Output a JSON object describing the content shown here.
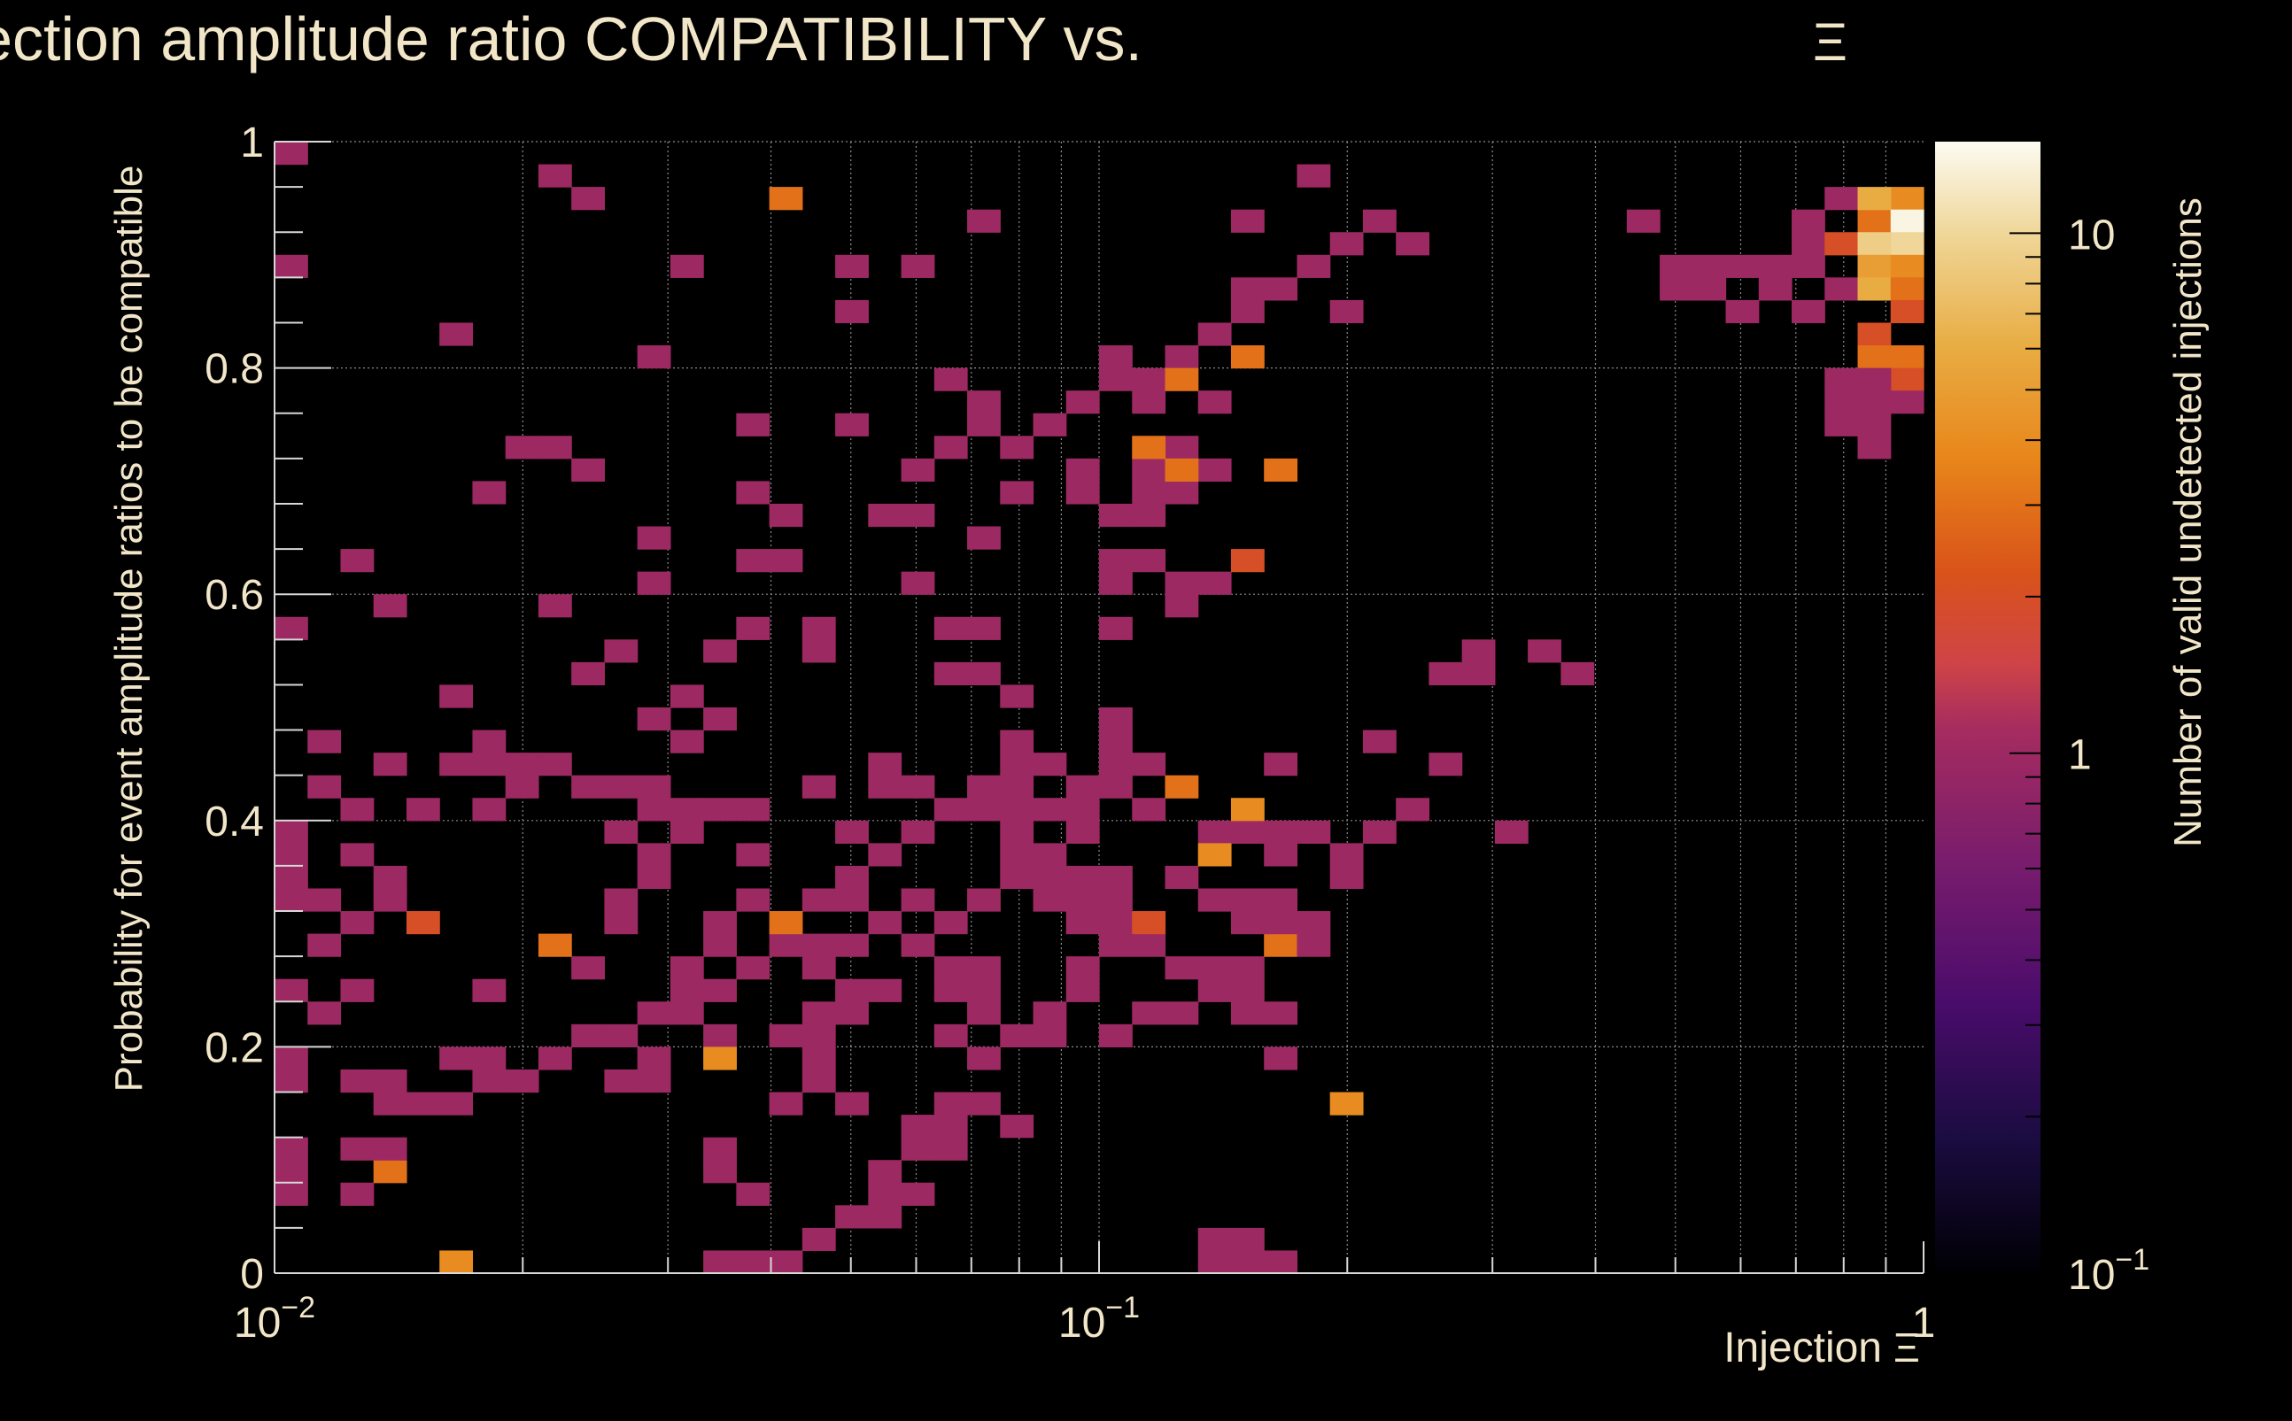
{
  "chart_data": {
    "type": "heatmap",
    "title": "Injection amplitude ratio COMPATIBILITY vs.",
    "title_symbol": "Ξ",
    "xlabel": "Injection",
    "xlabel_symbol": "Ξ",
    "ylabel": "Probability for event amplitude ratios to be compatible",
    "zlabel": "Number of valid undetected injections",
    "x_scale": "log",
    "xlim": [
      0.01,
      1
    ],
    "ylim": [
      0,
      1
    ],
    "z_scale": "log",
    "zlim": [
      0.1,
      15
    ],
    "x_ticks": [
      {
        "base": "10",
        "exp": "−2"
      },
      {
        "base": "10",
        "exp": "−1"
      },
      {
        "base": "1",
        "exp": ""
      }
    ],
    "y_ticks": [
      "0",
      "0.2",
      "0.4",
      "0.6",
      "0.8",
      "1"
    ],
    "z_ticks": [
      {
        "base": "10",
        "exp": "−1"
      },
      {
        "base": "1",
        "exp": ""
      },
      {
        "base": "10",
        "exp": ""
      }
    ],
    "grid": true,
    "n_xbins": 50,
    "n_ybins": 50,
    "bins": [
      [
        0,
        49,
        1
      ],
      [
        8,
        48,
        1
      ],
      [
        34,
        45,
        1
      ],
      [
        9,
        47,
        1
      ],
      [
        31,
        48,
        1
      ],
      [
        29,
        46,
        1
      ],
      [
        21,
        46,
        1
      ],
      [
        41,
        46,
        1
      ],
      [
        42,
        44,
        1
      ],
      [
        42,
        43,
        1
      ],
      [
        43,
        44,
        1
      ],
      [
        44,
        44,
        1
      ],
      [
        45,
        44,
        1
      ],
      [
        46,
        44,
        1
      ],
      [
        47,
        47,
        1
      ],
      [
        46,
        46,
        1
      ],
      [
        46,
        45,
        1
      ],
      [
        47,
        45,
        2
      ],
      [
        48,
        46,
        3
      ],
      [
        49,
        47,
        4
      ],
      [
        48,
        47,
        6
      ],
      [
        49,
        46,
        14
      ],
      [
        49,
        45,
        10
      ],
      [
        48,
        45,
        9
      ],
      [
        47,
        43,
        1
      ],
      [
        48,
        44,
        5
      ],
      [
        49,
        44,
        4
      ],
      [
        48,
        43,
        6
      ],
      [
        49,
        43,
        3
      ],
      [
        49,
        42,
        2
      ],
      [
        48,
        41,
        2
      ],
      [
        48,
        40,
        3
      ],
      [
        49,
        40,
        3
      ],
      [
        49,
        39,
        2
      ],
      [
        48,
        39,
        1
      ],
      [
        47,
        39,
        1
      ],
      [
        48,
        38,
        1
      ],
      [
        47,
        38,
        1
      ],
      [
        47,
        37,
        1
      ],
      [
        48,
        37,
        1
      ],
      [
        48,
        36,
        1
      ],
      [
        49,
        38,
        1
      ],
      [
        46,
        42,
        1
      ],
      [
        45,
        43,
        1
      ],
      [
        44,
        42,
        1
      ],
      [
        43,
        43,
        1
      ],
      [
        20,
        39,
        1
      ],
      [
        21,
        38,
        1
      ],
      [
        11,
        40,
        1
      ],
      [
        17,
        44,
        1
      ],
      [
        19,
        44,
        1
      ],
      [
        0,
        44,
        1
      ],
      [
        12,
        44,
        1
      ],
      [
        25,
        40,
        1
      ],
      [
        5,
        41,
        1
      ],
      [
        26,
        38,
        1
      ],
      [
        17,
        42,
        1
      ],
      [
        32,
        42,
        1
      ],
      [
        29,
        43,
        1
      ],
      [
        28,
        38,
        1
      ],
      [
        21,
        37,
        1
      ],
      [
        19,
        35,
        1
      ],
      [
        18,
        33,
        1
      ],
      [
        15,
        33,
        1
      ],
      [
        7,
        36,
        1
      ],
      [
        14,
        34,
        1
      ],
      [
        22,
        34,
        1
      ],
      [
        24,
        34,
        1
      ],
      [
        25,
        33,
        1
      ],
      [
        27,
        36,
        1
      ],
      [
        20,
        36,
        1
      ],
      [
        21,
        32,
        1
      ],
      [
        16,
        28,
        1
      ],
      [
        14,
        28,
        1
      ],
      [
        13,
        27,
        1
      ],
      [
        16,
        27,
        1
      ],
      [
        15,
        31,
        1
      ],
      [
        19,
        33,
        1
      ],
      [
        11,
        32,
        1
      ],
      [
        8,
        36,
        1
      ],
      [
        9,
        35,
        1
      ],
      [
        14,
        37,
        1
      ],
      [
        26,
        34,
        1
      ],
      [
        17,
        37,
        1
      ],
      [
        6,
        34,
        1
      ],
      [
        2,
        31,
        1
      ],
      [
        0,
        28,
        1
      ],
      [
        10,
        27,
        1
      ],
      [
        8,
        22,
        1
      ],
      [
        11,
        24,
        1
      ],
      [
        14,
        31,
        1
      ],
      [
        11,
        30,
        1
      ],
      [
        19,
        30,
        1
      ],
      [
        13,
        24,
        1
      ],
      [
        12,
        25,
        1
      ],
      [
        21,
        26,
        1
      ],
      [
        8,
        29,
        1
      ],
      [
        3,
        29,
        1
      ],
      [
        9,
        26,
        1
      ],
      [
        1,
        23,
        1
      ],
      [
        12,
        23,
        1
      ],
      [
        3,
        22,
        1
      ],
      [
        18,
        22,
        1
      ],
      [
        19,
        21,
        1
      ],
      [
        22,
        21,
        1
      ],
      [
        5,
        25,
        1
      ],
      [
        1,
        21,
        1
      ],
      [
        2,
        20,
        1
      ],
      [
        0,
        19,
        1
      ],
      [
        2,
        18,
        1
      ],
      [
        0,
        18,
        1
      ],
      [
        0,
        17,
        1
      ],
      [
        4,
        20,
        1
      ],
      [
        7,
        22,
        1
      ],
      [
        6,
        23,
        1
      ],
      [
        7,
        21,
        1
      ],
      [
        6,
        20,
        1
      ],
      [
        1,
        16,
        1
      ],
      [
        0,
        16,
        1
      ],
      [
        1,
        14,
        1
      ],
      [
        2,
        15,
        1
      ],
      [
        3,
        16,
        1
      ],
      [
        3,
        17,
        1
      ],
      [
        0,
        12,
        1
      ],
      [
        2,
        12,
        1
      ],
      [
        1,
        11,
        1
      ],
      [
        5,
        9,
        1
      ],
      [
        0,
        9,
        1
      ],
      [
        0,
        8,
        1
      ],
      [
        3,
        8,
        1
      ],
      [
        3,
        7,
        1
      ],
      [
        4,
        7,
        1
      ],
      [
        2,
        8,
        1
      ],
      [
        2,
        5,
        1
      ],
      [
        0,
        5,
        1
      ],
      [
        0,
        4,
        1
      ],
      [
        0,
        3,
        1
      ],
      [
        2,
        3,
        1
      ],
      [
        3,
        4,
        1
      ],
      [
        3,
        5,
        1
      ],
      [
        5,
        7,
        1
      ],
      [
        6,
        8,
        1
      ],
      [
        6,
        9,
        1
      ],
      [
        7,
        8,
        1
      ],
      [
        8,
        9,
        1
      ],
      [
        9,
        10,
        1
      ],
      [
        10,
        10,
        1
      ],
      [
        11,
        11,
        1
      ],
      [
        12,
        12,
        1
      ],
      [
        9,
        13,
        1
      ],
      [
        10,
        15,
        1
      ],
      [
        10,
        16,
        1
      ],
      [
        11,
        17,
        1
      ],
      [
        11,
        18,
        1
      ],
      [
        10,
        19,
        1
      ],
      [
        12,
        20,
        1
      ],
      [
        13,
        20,
        1
      ],
      [
        14,
        18,
        1
      ],
      [
        17,
        17,
        1
      ],
      [
        18,
        18,
        1
      ],
      [
        19,
        19,
        1
      ],
      [
        20,
        20,
        1
      ],
      [
        21,
        20,
        1
      ],
      [
        23,
        20,
        1
      ],
      [
        24,
        19,
        1
      ],
      [
        22,
        17,
        1
      ],
      [
        21,
        13,
        1
      ],
      [
        24,
        12,
        1
      ],
      [
        23,
        10,
        1
      ],
      [
        20,
        10,
        1
      ],
      [
        18,
        12,
        1
      ],
      [
        17,
        11,
        1
      ],
      [
        16,
        11,
        1
      ],
      [
        15,
        10,
        1
      ],
      [
        14,
        13,
        1
      ],
      [
        15,
        14,
        1
      ],
      [
        16,
        16,
        1
      ],
      [
        17,
        16,
        1
      ],
      [
        18,
        15,
        1
      ],
      [
        17,
        14,
        1
      ],
      [
        19,
        14,
        1
      ],
      [
        20,
        13,
        1
      ],
      [
        21,
        12,
        1
      ],
      [
        12,
        13,
        1
      ],
      [
        13,
        14,
        1
      ],
      [
        13,
        12,
        1
      ],
      [
        12,
        11,
        1
      ],
      [
        11,
        9,
        1
      ],
      [
        10,
        8,
        1
      ],
      [
        11,
        8,
        1
      ],
      [
        13,
        10,
        1
      ],
      [
        13,
        15,
        1
      ],
      [
        14,
        16,
        1
      ],
      [
        16,
        13,
        1
      ],
      [
        16,
        14,
        1
      ],
      [
        15,
        7,
        1
      ],
      [
        17,
        7,
        1
      ],
      [
        17,
        12,
        1
      ],
      [
        16,
        10,
        1
      ],
      [
        16,
        9,
        1
      ],
      [
        16,
        8,
        1
      ],
      [
        13,
        5,
        1
      ],
      [
        13,
        4,
        1
      ],
      [
        14,
        3,
        1
      ],
      [
        18,
        4,
        1
      ],
      [
        18,
        3,
        1
      ],
      [
        17,
        2,
        1
      ],
      [
        16,
        1,
        1
      ],
      [
        19,
        5,
        1
      ],
      [
        19,
        6,
        1
      ],
      [
        20,
        5,
        1
      ],
      [
        20,
        6,
        1
      ],
      [
        20,
        12,
        1
      ],
      [
        21,
        11,
        1
      ],
      [
        22,
        10,
        1
      ],
      [
        23,
        11,
        1
      ],
      [
        24,
        12,
        1
      ],
      [
        24,
        13,
        1
      ],
      [
        25,
        14,
        1
      ],
      [
        26,
        14,
        1
      ],
      [
        25,
        15,
        1
      ],
      [
        26,
        15,
        1
      ],
      [
        27,
        13,
        1
      ],
      [
        28,
        12,
        1
      ],
      [
        29,
        11,
        1
      ],
      [
        30,
        11,
        1
      ],
      [
        29,
        12,
        1
      ],
      [
        30,
        9,
        1
      ],
      [
        25,
        10,
        1
      ],
      [
        21,
        9,
        1
      ],
      [
        20,
        7,
        1
      ],
      [
        21,
        7,
        1
      ],
      [
        22,
        6,
        1
      ],
      [
        19,
        3,
        1
      ],
      [
        18,
        2,
        1
      ],
      [
        13,
        0,
        1
      ],
      [
        14,
        0,
        1
      ],
      [
        15,
        0,
        1
      ],
      [
        28,
        0,
        1
      ],
      [
        29,
        0,
        1
      ],
      [
        30,
        0,
        1
      ],
      [
        29,
        1,
        1
      ],
      [
        28,
        1,
        1
      ],
      [
        35,
        22,
        1
      ],
      [
        38,
        27,
        1
      ],
      [
        39,
        26,
        1
      ],
      [
        34,
        20,
        1
      ],
      [
        33,
        19,
        1
      ],
      [
        37,
        19,
        1
      ],
      [
        31,
        19,
        1
      ],
      [
        32,
        18,
        1
      ],
      [
        32,
        17,
        1
      ],
      [
        28,
        16,
        1
      ],
      [
        29,
        16,
        1
      ],
      [
        30,
        16,
        1
      ],
      [
        31,
        15,
        1
      ],
      [
        28,
        13,
        1
      ],
      [
        29,
        13,
        1
      ],
      [
        30,
        14,
        1
      ],
      [
        31,
        14,
        1
      ],
      [
        27,
        11,
        1
      ],
      [
        26,
        11,
        1
      ],
      [
        25,
        16,
        1
      ],
      [
        21,
        16,
        1
      ],
      [
        20,
        15,
        1
      ],
      [
        19,
        16,
        1
      ],
      [
        18,
        15,
        1
      ],
      [
        24,
        15,
        1
      ],
      [
        24,
        16,
        1
      ],
      [
        22,
        17,
        1
      ],
      [
        23,
        18,
        1
      ],
      [
        22,
        19,
        1
      ],
      [
        22,
        18,
        1
      ],
      [
        23,
        17,
        1
      ],
      [
        24,
        17,
        1
      ],
      [
        23,
        16,
        1
      ],
      [
        25,
        23,
        1
      ],
      [
        25,
        24,
        1
      ],
      [
        22,
        25,
        1
      ],
      [
        20,
        26,
        1
      ],
      [
        20,
        28,
        1
      ],
      [
        21,
        28,
        1
      ],
      [
        25,
        28,
        1
      ],
      [
        27,
        29,
        1
      ],
      [
        25,
        30,
        1
      ],
      [
        27,
        30,
        1
      ],
      [
        25,
        31,
        1
      ],
      [
        26,
        31,
        1
      ],
      [
        28,
        30,
        1
      ],
      [
        29,
        31,
        1
      ],
      [
        26,
        33,
        1
      ],
      [
        27,
        34,
        1
      ],
      [
        28,
        35,
        1
      ],
      [
        26,
        35,
        1
      ],
      [
        24,
        35,
        1
      ],
      [
        22,
        36,
        1
      ],
      [
        23,
        37,
        1
      ],
      [
        24,
        38,
        1
      ],
      [
        25,
        39,
        1
      ],
      [
        26,
        39,
        1
      ],
      [
        27,
        40,
        1
      ],
      [
        28,
        41,
        1
      ],
      [
        29,
        42,
        1
      ],
      [
        30,
        43,
        1
      ],
      [
        31,
        44,
        1
      ],
      [
        32,
        45,
        1
      ],
      [
        33,
        46,
        1
      ]
    ],
    "hot_bins": [
      [
        27,
        35,
        3
      ],
      [
        29,
        31,
        2
      ],
      [
        35,
        26,
        1
      ],
      [
        36,
        27,
        1
      ],
      [
        36,
        26,
        1
      ],
      [
        33,
        23,
        1
      ],
      [
        30,
        22,
        1
      ],
      [
        25,
        22,
        1
      ],
      [
        26,
        22,
        1
      ],
      [
        30,
        15,
        1
      ],
      [
        29,
        15,
        1
      ],
      [
        30,
        16,
        1
      ],
      [
        30,
        18,
        1
      ],
      [
        30,
        19,
        1
      ],
      [
        29,
        19,
        1
      ],
      [
        28,
        19,
        1
      ],
      [
        25,
        17,
        1
      ],
      [
        27,
        17,
        1
      ],
      [
        24,
        20,
        1
      ],
      [
        26,
        20,
        1
      ],
      [
        25,
        21,
        1
      ],
      [
        24,
        21,
        1
      ],
      [
        22,
        20,
        1
      ],
      [
        23,
        20,
        1
      ],
      [
        22,
        23,
        1
      ],
      [
        23,
        22,
        1
      ],
      [
        22,
        22,
        1
      ],
      [
        21,
        21,
        1
      ],
      [
        18,
        21,
        1
      ],
      [
        17,
        19,
        1
      ],
      [
        16,
        21,
        1
      ],
      [
        14,
        20,
        1
      ],
      [
        13,
        20,
        1
      ],
      [
        12,
        19,
        1
      ],
      [
        11,
        20,
        1
      ],
      [
        11,
        21,
        1
      ],
      [
        10,
        21,
        1
      ],
      [
        9,
        21,
        1
      ],
      [
        8,
        22,
        1
      ],
      [
        7,
        22,
        1
      ],
      [
        6,
        22,
        1
      ],
      [
        5,
        22,
        1
      ]
    ],
    "highlight_bins": [
      [
        4,
        15,
        2
      ],
      [
        6,
        12,
        1
      ],
      [
        8,
        14,
        3
      ],
      [
        3,
        4,
        3
      ],
      [
        5,
        0,
        4
      ],
      [
        13,
        9,
        4
      ],
      [
        15,
        15,
        3
      ],
      [
        27,
        21,
        3
      ],
      [
        28,
        18,
        4
      ],
      [
        29,
        20,
        4
      ],
      [
        30,
        14,
        3
      ],
      [
        32,
        7,
        4
      ],
      [
        26,
        15,
        2
      ],
      [
        30,
        35,
        3
      ],
      [
        15,
        47,
        3
      ],
      [
        27,
        39,
        3
      ],
      [
        26,
        36,
        3
      ],
      [
        29,
        40,
        3
      ]
    ]
  }
}
